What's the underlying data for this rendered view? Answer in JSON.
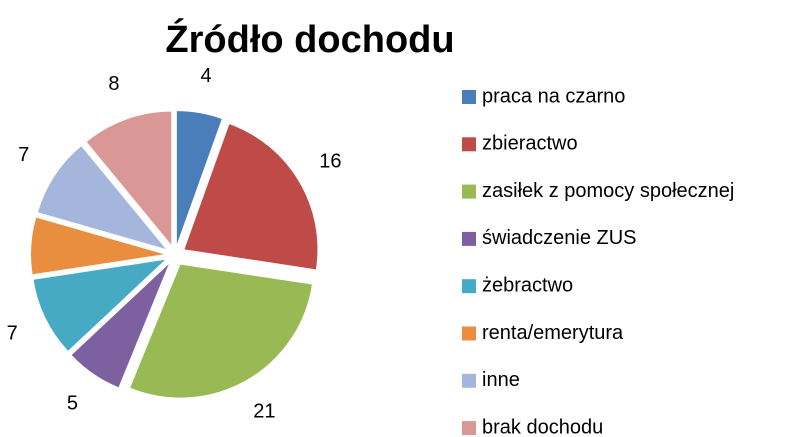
{
  "chart_data": {
    "type": "pie",
    "title": "Źródło dochodu",
    "categories": [
      "praca na czarno",
      "zbieractwo",
      "zasiłek z pomocy społecznej",
      "świadczenie ZUS",
      "żebractwo",
      "renta/emerytura",
      "inne",
      "brak dochodu"
    ],
    "values": [
      4,
      16,
      21,
      5,
      7,
      5,
      7,
      8
    ],
    "colors": [
      "#4a7ebb",
      "#be4b48",
      "#98b954",
      "#7d60a0",
      "#46aac5",
      "#e98d3e",
      "#a5b6dc",
      "#d99795"
    ],
    "legend": "right"
  }
}
